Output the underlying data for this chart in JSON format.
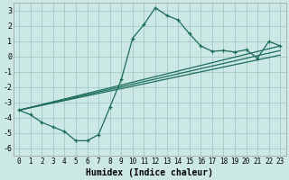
{
  "title": "",
  "xlabel": "Humidex (Indice chaleur)",
  "bg_color": "#cce8e4",
  "grid_color": "#aacccc",
  "line_color": "#1a6b5a",
  "xlim": [
    -0.5,
    23.5
  ],
  "ylim": [
    -6.5,
    3.5
  ],
  "yticks": [
    -6,
    -5,
    -4,
    -3,
    -2,
    -1,
    0,
    1,
    2,
    3
  ],
  "xticks": [
    0,
    1,
    2,
    3,
    4,
    5,
    6,
    7,
    8,
    9,
    10,
    11,
    12,
    13,
    14,
    15,
    16,
    17,
    18,
    19,
    20,
    21,
    22,
    23
  ],
  "curve1_x": [
    0,
    1,
    2,
    3,
    4,
    5,
    6,
    7,
    8,
    9,
    10,
    11,
    12,
    13,
    14,
    15,
    16,
    17,
    18,
    19,
    20,
    21,
    22,
    23
  ],
  "curve1_y": [
    -3.5,
    -3.8,
    -4.3,
    -4.6,
    -4.9,
    -5.5,
    -5.5,
    -5.1,
    -3.3,
    -1.5,
    1.2,
    2.1,
    3.2,
    2.7,
    2.4,
    1.5,
    0.7,
    0.35,
    0.4,
    0.3,
    0.45,
    -0.1,
    1.0,
    0.7
  ],
  "line1_x": [
    0,
    23
  ],
  "line1_y": [
    -3.5,
    0.7
  ],
  "line2_x": [
    0,
    23
  ],
  "line2_y": [
    -3.5,
    0.4
  ],
  "line3_x": [
    0,
    23
  ],
  "line3_y": [
    -3.5,
    0.1
  ],
  "xlabel_fontsize": 7,
  "tick_fontsize": 5.5
}
